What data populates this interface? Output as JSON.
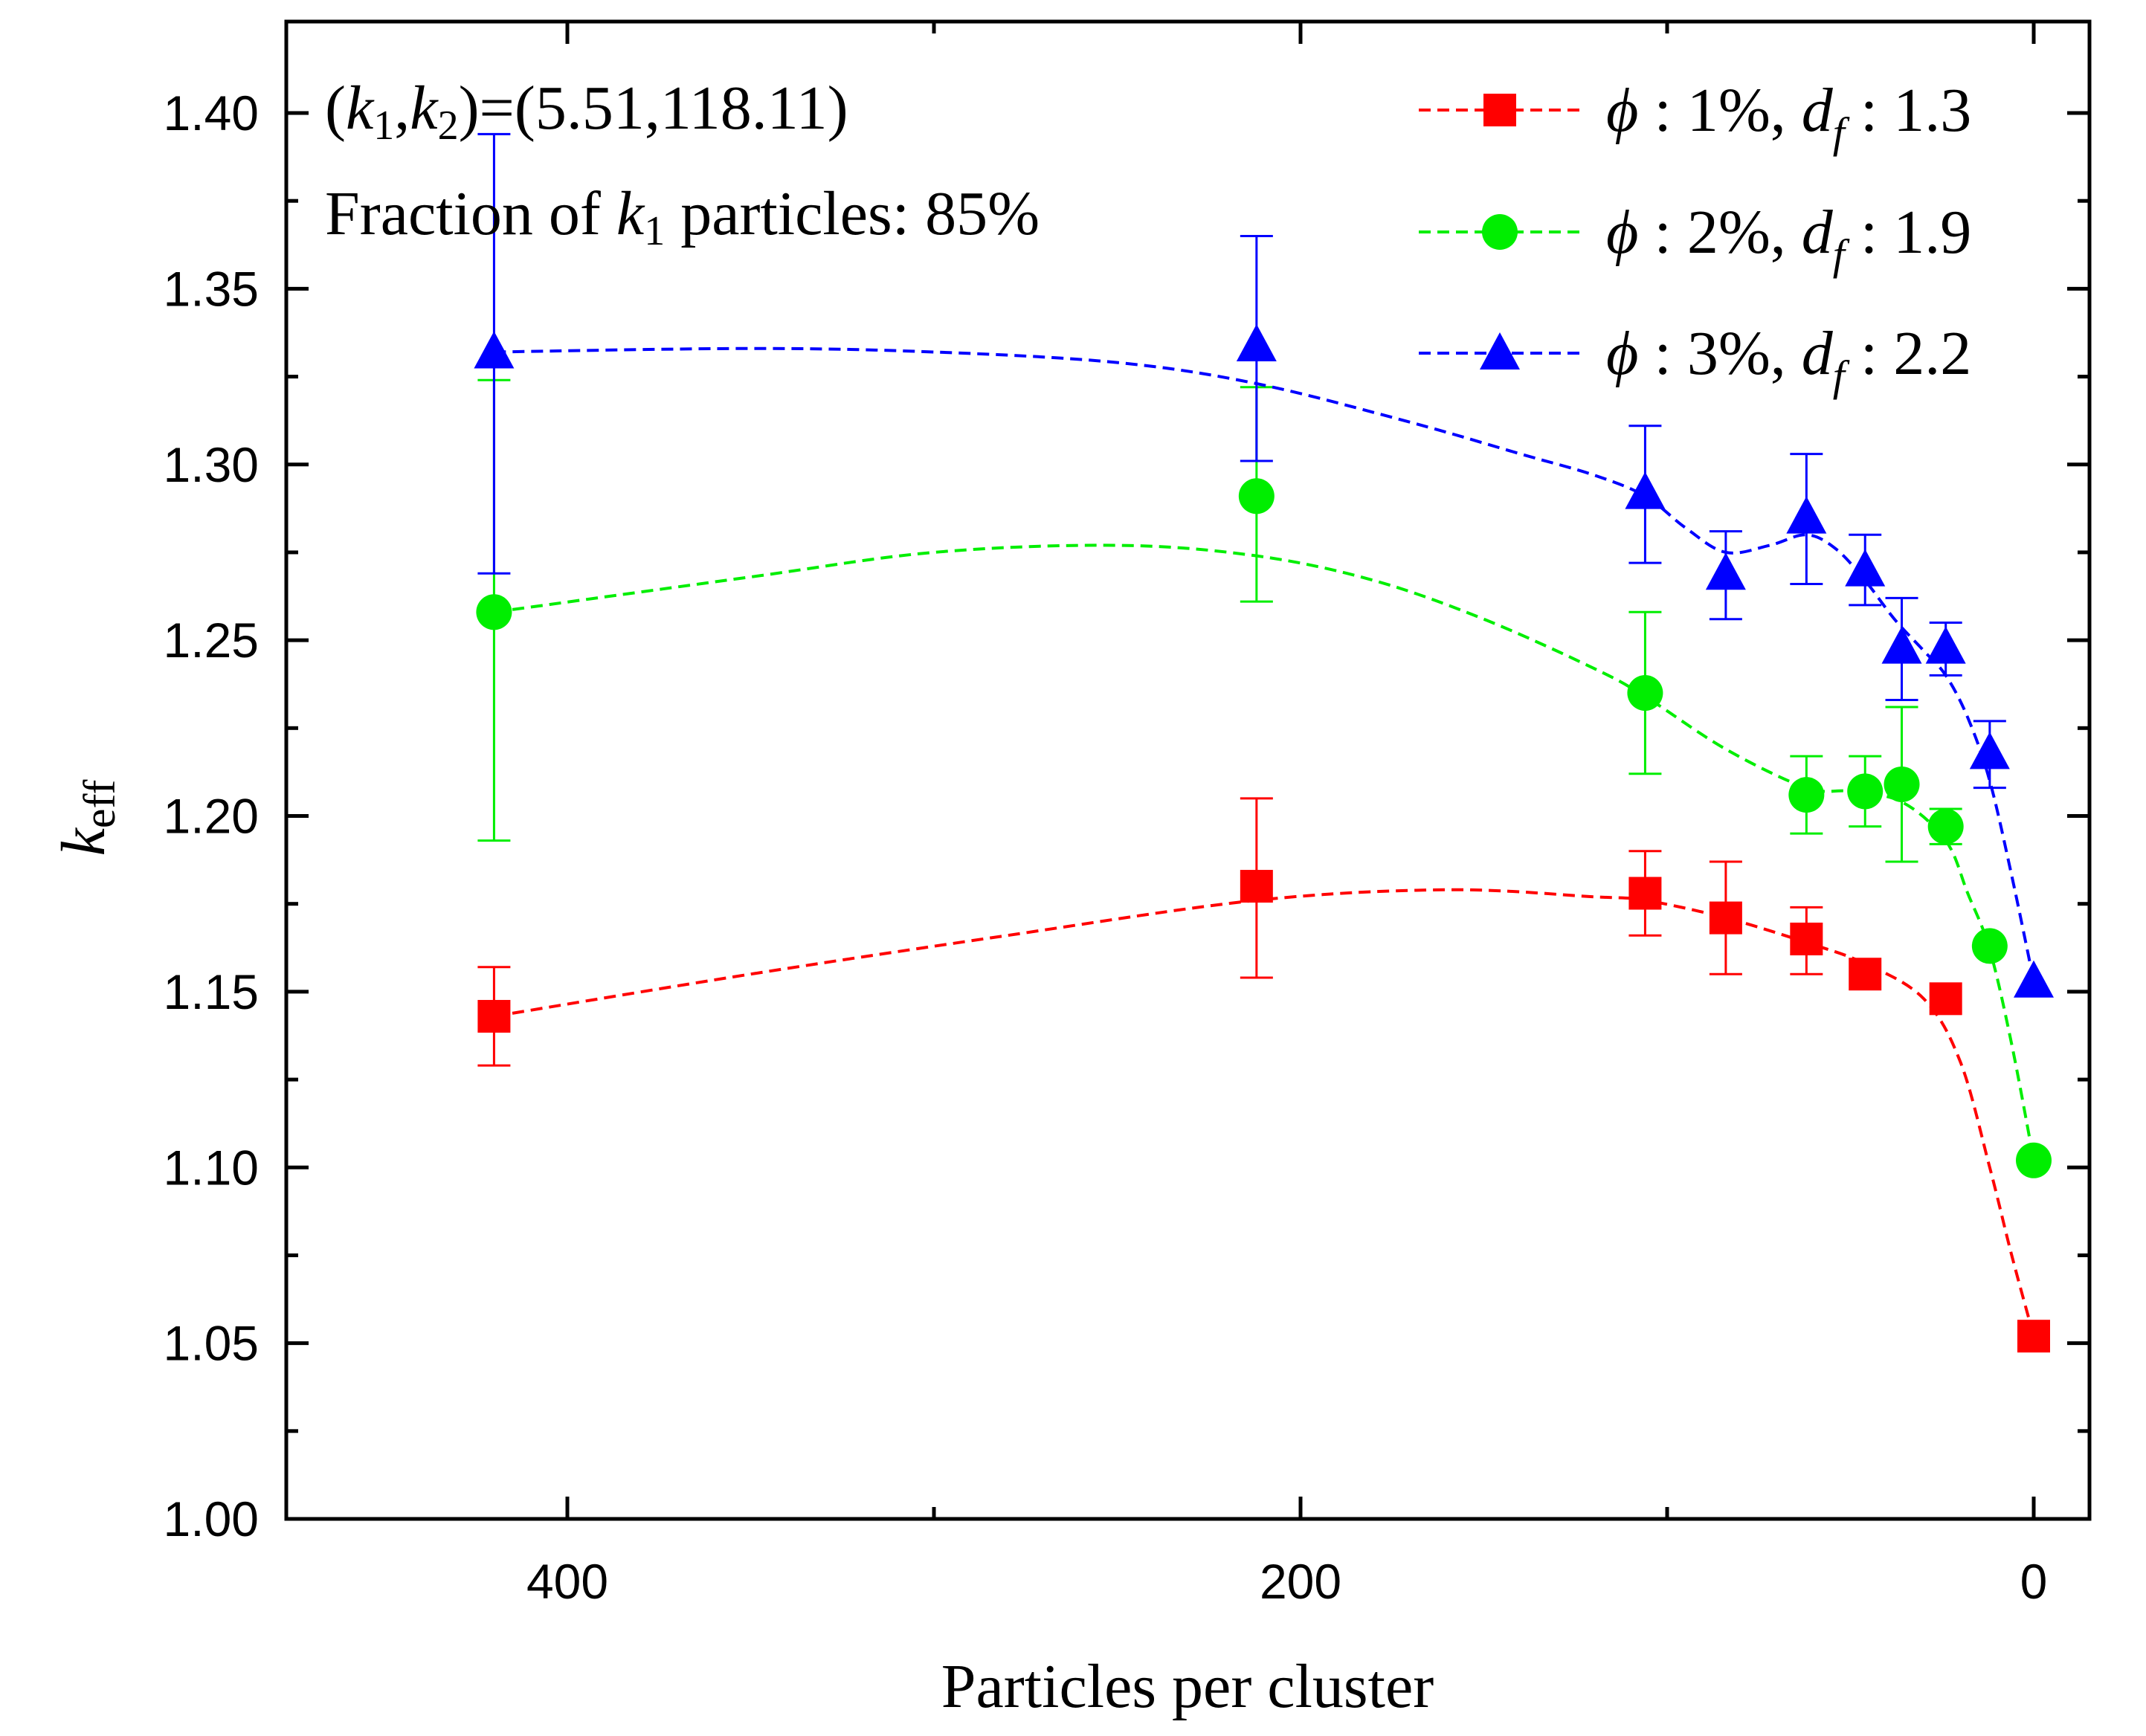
{
  "chart_data": {
    "type": "line",
    "title": "",
    "xlabel": "Particles per cluster",
    "ylabel_main": "k",
    "ylabel_sub": "eff",
    "xlim": [
      475,
      -25
    ],
    "ylim": [
      1.0,
      1.42
    ],
    "x_ticks": [
      400,
      200,
      0
    ],
    "x_tick_labels": [
      "400",
      "200",
      "0"
    ],
    "x_minor_ticks": [
      300,
      100
    ],
    "y_ticks": [
      1.0,
      1.05,
      1.1,
      1.15,
      1.2,
      1.25,
      1.3,
      1.35,
      1.4
    ],
    "y_tick_labels": [
      "1.00",
      "1.05",
      "1.10",
      "1.15",
      "1.20",
      "1.25",
      "1.30",
      "1.35",
      "1.40"
    ],
    "y_minor_ticks": [
      1.025,
      1.075,
      1.125,
      1.175,
      1.225,
      1.275,
      1.325,
      1.375
    ],
    "annotation": {
      "line1_open": "(",
      "k": "k",
      "sub1": "1",
      "comma": ",",
      "sub2": "2",
      "line1_close": ")=(5.51,118.11)",
      "line2_prefix": "Fraction of ",
      "line2_sub": "1",
      "line2_suffix": " particles: 85%"
    },
    "legend": {
      "phi_symbol": "ϕ",
      "d_symbol": "d",
      "d_sub": "f",
      "placement": "top-right"
    },
    "series": [
      {
        "name": "ϕ : 1%,  d_f : 1.3",
        "phi_label": " : 1%,  ",
        "df_label": " : 1.3",
        "color": "#ff0000",
        "marker": "square",
        "x": [
          420,
          212,
          106,
          84,
          62,
          46,
          24,
          0
        ],
        "y": [
          1.143,
          1.18,
          1.178,
          1.171,
          1.165,
          1.155,
          1.148,
          1.052
        ],
        "err_lo": [
          0.014,
          0.026,
          0.012,
          0.016,
          0.01,
          0,
          0,
          0
        ],
        "err_hi": [
          0.014,
          0.025,
          0.012,
          0.016,
          0.009,
          0,
          0,
          0
        ],
        "fit": [
          [
            420,
            1.143
          ],
          [
            350,
            1.155
          ],
          [
            280,
            1.166
          ],
          [
            212,
            1.176
          ],
          [
            160,
            1.179
          ],
          [
            120,
            1.177
          ],
          [
            106,
            1.176
          ],
          [
            84,
            1.171
          ],
          [
            62,
            1.164
          ],
          [
            46,
            1.158
          ],
          [
            30,
            1.148
          ],
          [
            20,
            1.13
          ],
          [
            12,
            1.1
          ],
          [
            6,
            1.075
          ],
          [
            0,
            1.052
          ]
        ]
      },
      {
        "name": "ϕ : 2%,  d_f : 1.9",
        "phi_label": " : 2%,  ",
        "df_label": " : 1.9",
        "color": "#00ee00",
        "marker": "circle",
        "x": [
          420,
          212,
          106,
          62,
          46,
          36,
          24,
          12,
          0
        ],
        "y": [
          1.258,
          1.291,
          1.235,
          1.206,
          1.207,
          1.209,
          1.197,
          1.163,
          1.102
        ],
        "err_lo": [
          0.065,
          0.03,
          0.023,
          0.011,
          0.01,
          0.022,
          0.005,
          0,
          0
        ],
        "err_hi": [
          0.066,
          0.031,
          0.023,
          0.011,
          0.01,
          0.022,
          0.005,
          0,
          0
        ],
        "fit": [
          [
            420,
            1.258
          ],
          [
            350,
            1.268
          ],
          [
            300,
            1.275
          ],
          [
            250,
            1.277
          ],
          [
            212,
            1.274
          ],
          [
            180,
            1.267
          ],
          [
            150,
            1.256
          ],
          [
            120,
            1.242
          ],
          [
            106,
            1.234
          ],
          [
            84,
            1.219
          ],
          [
            62,
            1.208
          ],
          [
            50,
            1.207
          ],
          [
            36,
            1.204
          ],
          [
            24,
            1.193
          ],
          [
            18,
            1.178
          ],
          [
            12,
            1.162
          ],
          [
            6,
            1.135
          ],
          [
            0,
            1.102
          ]
        ]
      },
      {
        "name": "ϕ : 3%,  d_f : 2.2",
        "phi_label": " : 3%,  ",
        "df_label": " : 2.2",
        "color": "#0000ff",
        "marker": "triangle",
        "x": [
          420,
          212,
          106,
          84,
          62,
          46,
          36,
          24,
          12,
          0
        ],
        "y": [
          1.332,
          1.334,
          1.292,
          1.269,
          1.285,
          1.27,
          1.248,
          1.248,
          1.218,
          1.153
        ],
        "err_lo": [
          0.063,
          0.033,
          0.02,
          0.013,
          0.019,
          0.01,
          0.015,
          0.008,
          0.01,
          0
        ],
        "err_hi": [
          0.062,
          0.031,
          0.019,
          0.012,
          0.018,
          0.01,
          0.014,
          0.007,
          0.009,
          0
        ],
        "fit": [
          [
            420,
            1.332
          ],
          [
            350,
            1.333
          ],
          [
            300,
            1.332
          ],
          [
            250,
            1.329
          ],
          [
            212,
            1.323
          ],
          [
            170,
            1.312
          ],
          [
            140,
            1.303
          ],
          [
            120,
            1.297
          ],
          [
            106,
            1.291
          ],
          [
            95,
            1.282
          ],
          [
            84,
            1.275
          ],
          [
            72,
            1.277
          ],
          [
            62,
            1.28
          ],
          [
            54,
            1.276
          ],
          [
            46,
            1.267
          ],
          [
            38,
            1.256
          ],
          [
            30,
            1.247
          ],
          [
            24,
            1.24
          ],
          [
            18,
            1.228
          ],
          [
            12,
            1.21
          ],
          [
            6,
            1.183
          ],
          [
            0,
            1.153
          ]
        ]
      }
    ]
  }
}
